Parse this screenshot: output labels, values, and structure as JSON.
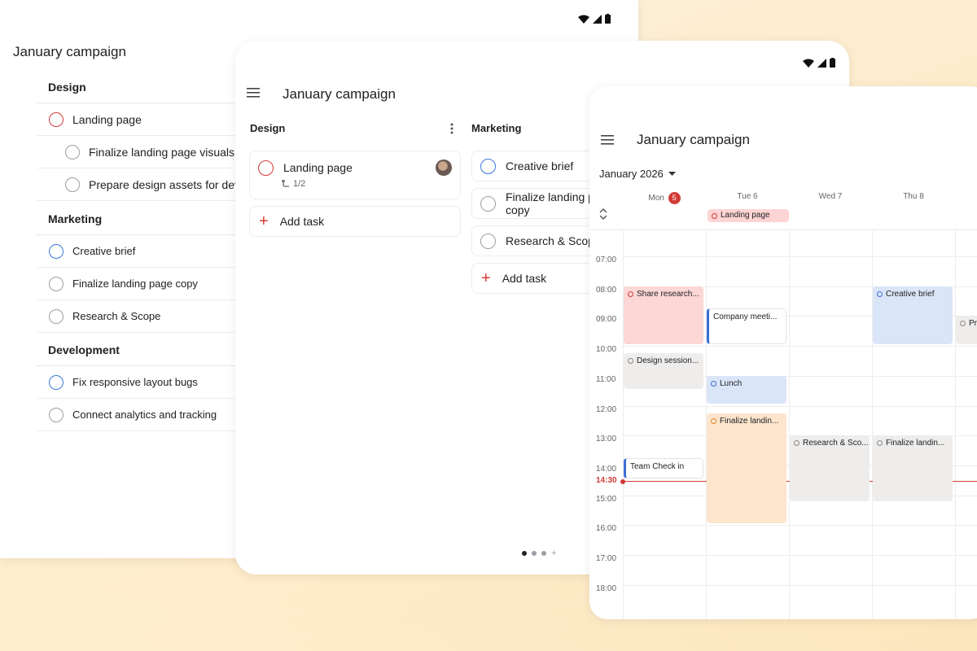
{
  "project_title": "January campaign",
  "list_view": {
    "sections": [
      {
        "name": "Design",
        "rows": [
          {
            "label": "Landing page",
            "status": "red",
            "level": 0
          },
          {
            "label": "Finalize landing page visuals",
            "status": "gray",
            "level": 1
          },
          {
            "label": "Prepare design assets for dev",
            "status": "gray",
            "level": 1
          }
        ]
      },
      {
        "name": "Marketing",
        "rows": [
          {
            "label": "Creative brief",
            "status": "blue",
            "level": 0
          },
          {
            "label": "Finalize landing page copy",
            "status": "gray",
            "level": 0
          },
          {
            "label": "Research & Scope",
            "status": "gray",
            "level": 0
          }
        ]
      },
      {
        "name": "Development",
        "rows": [
          {
            "label": "Fix responsive layout bugs",
            "status": "blue",
            "level": 0
          },
          {
            "label": "Connect analytics and tracking",
            "status": "gray",
            "level": 0
          }
        ]
      }
    ]
  },
  "board_view": {
    "columns": [
      {
        "name": "Design",
        "cards": [
          {
            "label": "Landing page",
            "status": "red",
            "subtasks": "1/2"
          }
        ],
        "add_label": "Add task"
      },
      {
        "name": "Marketing",
        "cards": [
          {
            "label": "Creative brief",
            "status": "blue"
          },
          {
            "label": "Finalize landing page copy",
            "status": "gray"
          },
          {
            "label": "Research & Scope",
            "status": "gray"
          }
        ],
        "add_label": "Add task"
      }
    ],
    "page_dots": {
      "count": 3,
      "active": 0
    }
  },
  "calendar_view": {
    "month_label": "January 2026",
    "days": [
      {
        "label": "Mon",
        "num": "5",
        "today": true
      },
      {
        "label": "Tue 6"
      },
      {
        "label": "Wed 7"
      },
      {
        "label": "Thu 8"
      }
    ],
    "all_day": {
      "label": "Landing page",
      "day": "Tue 6"
    },
    "hours": [
      "07:00",
      "08:00",
      "09:00",
      "10:00",
      "11:00",
      "12:00",
      "13:00",
      "14:00",
      "15:00",
      "16:00",
      "17:00",
      "18:00"
    ],
    "now_label": "14:30",
    "events": [
      {
        "label": "Share research...",
        "day": "Mon",
        "start": "08:00",
        "end": "10:00",
        "color": "#fdd6d6",
        "dot": "#d13b36"
      },
      {
        "label": "Company meeti...",
        "day": "Tue 6",
        "start": "08:45",
        "end": "10:00",
        "style": "meeting"
      },
      {
        "label": "Creative brief",
        "day": "Thu 8",
        "start": "08:00",
        "end": "10:00",
        "color": "#dbe5f8",
        "dot": "#3b6fd4"
      },
      {
        "label": "Pre...",
        "day": "Fri",
        "start": "09:00",
        "end": "10:00",
        "color": "#efedeb",
        "dot": "#8a8a8a"
      },
      {
        "label": "Design session...",
        "day": "Mon",
        "start": "10:15",
        "end": "11:30",
        "color": "#efedeb",
        "dot": "#8a8a8a"
      },
      {
        "label": "Lunch",
        "day": "Tue 6",
        "start": "11:00",
        "end": "12:00",
        "color": "#dbe5f8",
        "dot": "#3b6fd4"
      },
      {
        "label": "Finalize landin...",
        "day": "Tue 6",
        "start": "12:15",
        "end": "16:00",
        "color": "#fce5cc",
        "dot": "#e0872e"
      },
      {
        "label": "Research & Sco...",
        "day": "Wed 7",
        "start": "13:00",
        "end": "15:15",
        "color": "#efedeb",
        "dot": "#8a8a8a"
      },
      {
        "label": "Finalize landin...",
        "day": "Thu 8",
        "start": "13:00",
        "end": "15:15",
        "color": "#efedeb",
        "dot": "#8a8a8a"
      },
      {
        "label": "Team Check in",
        "day": "Mon",
        "start": "13:45",
        "end": "14:30",
        "style": "meeting"
      }
    ]
  },
  "colors": {
    "accent_red": "#d13b36",
    "accent_blue": "#3b78d8",
    "background": "#fdeccd"
  }
}
